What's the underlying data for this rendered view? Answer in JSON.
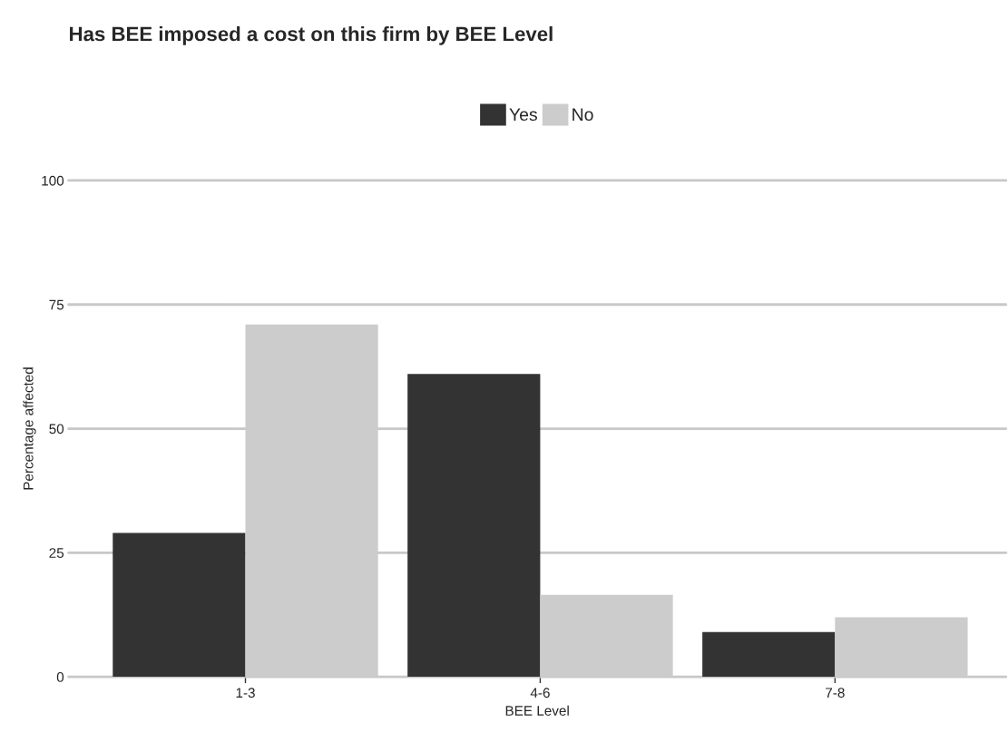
{
  "chart_data": {
    "type": "bar",
    "title": "Has BEE imposed a cost on this firm by BEE Level",
    "xlabel": "BEE Level",
    "ylabel": "Percentage affected",
    "categories": [
      "1-3",
      "4-6",
      "7-8"
    ],
    "series": [
      {
        "name": "Yes",
        "color": "#333333",
        "values": [
          29,
          61,
          9
        ]
      },
      {
        "name": "No",
        "color": "#cccccc",
        "values": [
          71,
          16.5,
          12
        ]
      }
    ],
    "ylim": [
      0,
      100
    ],
    "yticks": [
      0,
      25,
      50,
      75,
      100
    ],
    "grid": "y",
    "legend": "top"
  }
}
